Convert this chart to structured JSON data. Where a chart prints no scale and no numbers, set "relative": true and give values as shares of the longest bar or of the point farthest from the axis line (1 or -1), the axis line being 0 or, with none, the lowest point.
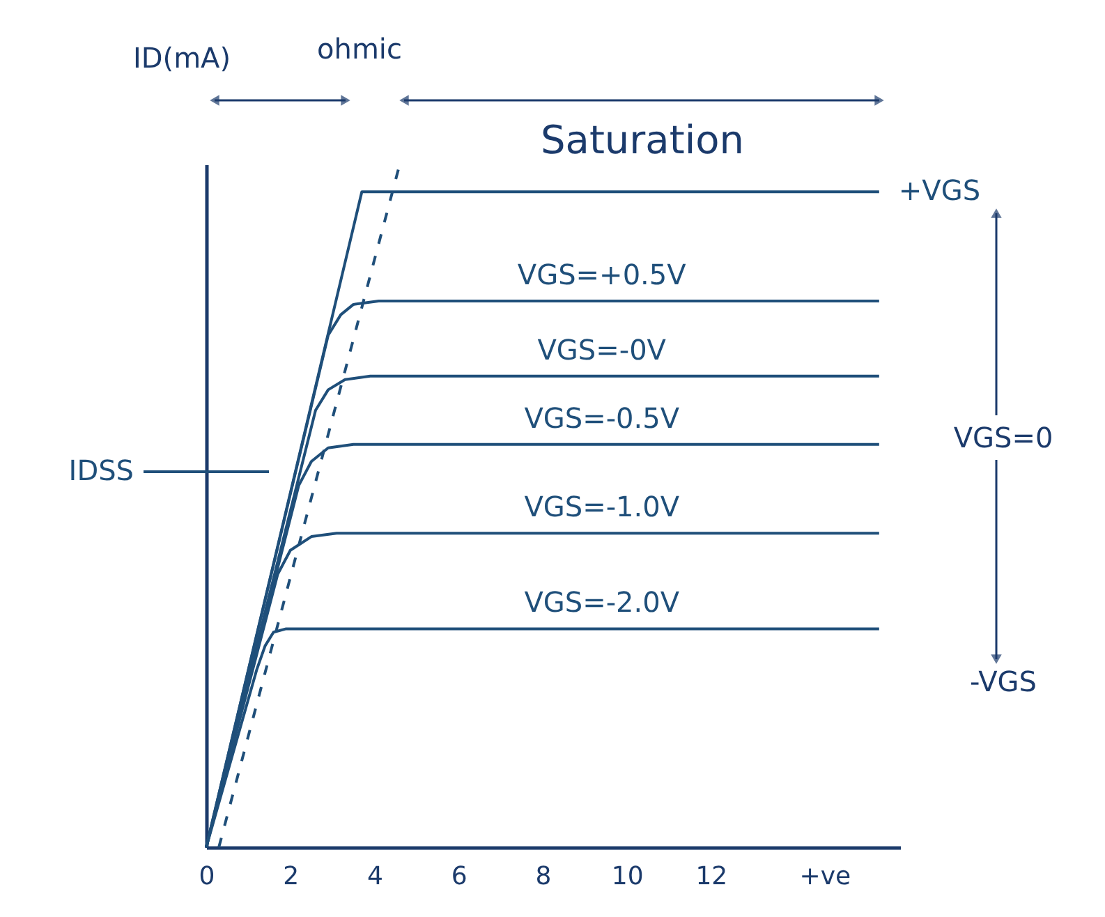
{
  "chart_data": {
    "type": "line",
    "ylabel": "ID(mA)",
    "relative": true,
    "xlim": [
      0,
      16.5
    ],
    "xticks": [
      0,
      2,
      4,
      6,
      8,
      10,
      12,
      {
        "value": 14.7,
        "label": "+ve"
      }
    ],
    "series": [
      {
        "name": "+VGS",
        "color": "#1f4f7a",
        "x": [
          0,
          3.7,
          16
        ],
        "values": [
          0,
          0.96,
          0.96
        ]
      },
      {
        "name": "VGS=+0.5V",
        "color": "#1f4f7a",
        "x": [
          0,
          2.9,
          3.2,
          3.5,
          4.1,
          16
        ],
        "values": [
          0,
          0.75,
          0.78,
          0.795,
          0.8,
          0.8
        ]
      },
      {
        "name": "VGS=-0V",
        "color": "#1f4f7a",
        "x": [
          0,
          2.6,
          2.9,
          3.3,
          3.9,
          16
        ],
        "values": [
          0,
          0.64,
          0.67,
          0.685,
          0.69,
          0.69
        ]
      },
      {
        "name": "VGS=-0.5V",
        "color": "#1f4f7a",
        "x": [
          0,
          2.2,
          2.5,
          2.9,
          3.5,
          16
        ],
        "values": [
          0,
          0.53,
          0.565,
          0.585,
          0.59,
          0.59
        ]
      },
      {
        "name": "VGS=-1.0V",
        "color": "#1f4f7a",
        "x": [
          0,
          1.7,
          2.0,
          2.5,
          3.1,
          16
        ],
        "values": [
          0,
          0.4,
          0.435,
          0.455,
          0.46,
          0.46
        ]
      },
      {
        "name": "VGS=-2.0V",
        "color": "#1f4f7a",
        "x": [
          0,
          1.2,
          1.4,
          1.6,
          1.9,
          16
        ],
        "values": [
          0,
          0.26,
          0.295,
          0.315,
          0.32,
          0.32
        ]
      },
      {
        "color": "#1f4f7a",
        "line_style": "dashed",
        "x": [
          0.3,
          4.6
        ],
        "values": [
          0,
          1
        ]
      }
    ],
    "ref_lines": [
      {
        "axis": "y",
        "value": 0.55,
        "label": "IDSS",
        "color": "#1f4f7a"
      }
    ],
    "annotations": [
      "ohmic",
      "Saturation",
      "VGS=0",
      "-VGS"
    ]
  }
}
